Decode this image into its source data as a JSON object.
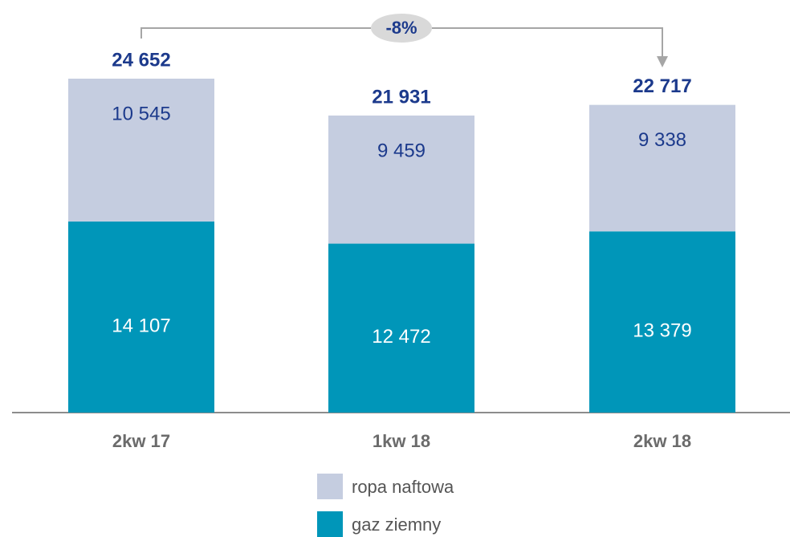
{
  "chart_data": {
    "type": "stacked_bar",
    "categories": [
      "2kw 17",
      "1kw 18",
      "2kw 18"
    ],
    "series": [
      {
        "name": "gaz ziemny",
        "color": "#0096b9",
        "values": [
          14107,
          12472,
          13379
        ],
        "value_labels": [
          "14 107",
          "12 472",
          "13 379"
        ]
      },
      {
        "name": "ropa naftowa",
        "color": "#c5cde0",
        "values": [
          10545,
          9459,
          9338
        ],
        "value_labels": [
          "10 545",
          "9 459",
          "9 338"
        ]
      }
    ],
    "totals": [
      24652,
      21931,
      22717
    ],
    "total_labels": [
      "24 652",
      "21 931",
      "22 717"
    ],
    "annotation": "-8%"
  }
}
